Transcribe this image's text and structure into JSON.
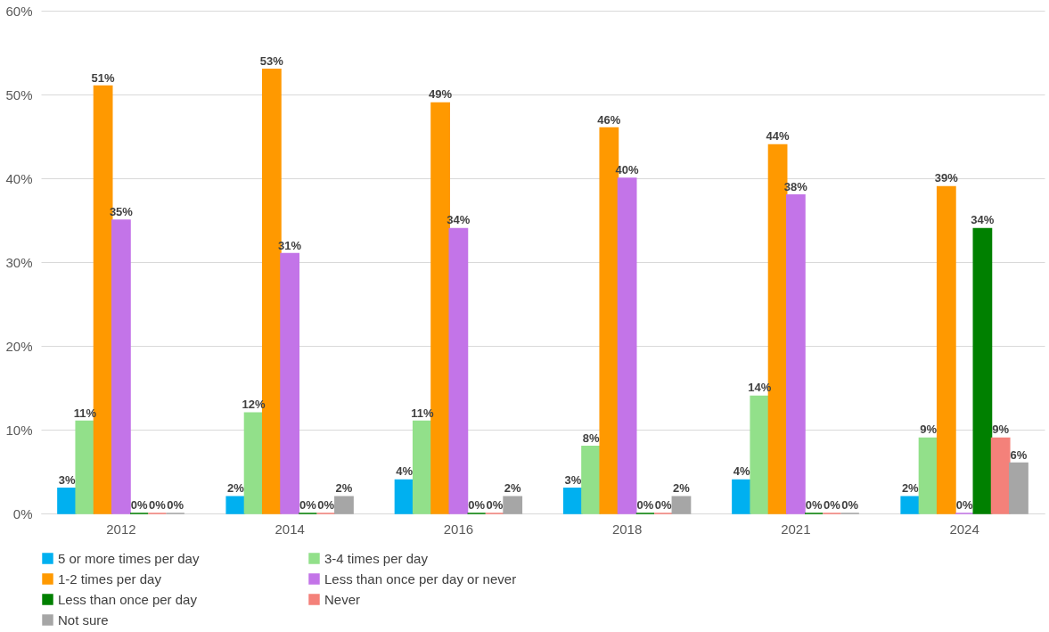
{
  "chart_data": {
    "type": "bar",
    "categories": [
      "2012",
      "2014",
      "2016",
      "2018",
      "2021",
      "2024"
    ],
    "series": [
      {
        "name": "5 or more times per day",
        "color": "#00b0f0",
        "values": [
          3,
          2,
          4,
          3,
          4,
          2
        ],
        "value_labels": [
          "3%",
          "2%",
          "4%",
          "3%",
          "4%",
          "2%"
        ]
      },
      {
        "name": "3-4 times per day",
        "color": "#92e08a",
        "values": [
          11,
          12,
          11,
          8,
          14,
          9
        ],
        "value_labels": [
          "11%",
          "12%",
          "11%",
          "8%",
          "14%",
          "9%"
        ]
      },
      {
        "name": "1-2 times per day",
        "color": "#ff9900",
        "values": [
          51,
          53,
          49,
          46,
          44,
          39
        ],
        "value_labels": [
          "51%",
          "53%",
          "49%",
          "46%",
          "44%",
          "39%"
        ]
      },
      {
        "name": "Less than once per day or never",
        "color": "#c374e8",
        "values": [
          35,
          31,
          34,
          40,
          38,
          0
        ],
        "value_labels": [
          "35%",
          "31%",
          "34%",
          "40%",
          "38%",
          "0%"
        ]
      },
      {
        "name": "Less than once per day",
        "color": "#008000",
        "values": [
          0,
          0,
          0,
          0,
          0,
          34
        ],
        "value_labels": [
          "0%",
          "0%",
          "0%",
          "0%",
          "0%",
          "34%"
        ]
      },
      {
        "name": "Never",
        "color": "#f4817a",
        "values": [
          0,
          0,
          0,
          0,
          0,
          9
        ],
        "value_labels": [
          "0%",
          "0%",
          "0%",
          "0%",
          "0%",
          "9%"
        ]
      },
      {
        "name": "Not sure",
        "color": "#a6a6a6",
        "values": [
          0,
          2,
          2,
          2,
          0,
          6
        ],
        "value_labels": [
          "0%",
          "2%",
          "2%",
          "2%",
          "0%",
          "6%"
        ]
      }
    ],
    "ylim": [
      0,
      60
    ],
    "yticks": [
      {
        "value": 0,
        "label": "0%"
      },
      {
        "value": 10,
        "label": "10%"
      },
      {
        "value": 20,
        "label": "20%"
      },
      {
        "value": 30,
        "label": "30%"
      },
      {
        "value": 40,
        "label": "40%"
      },
      {
        "value": 50,
        "label": "50%"
      },
      {
        "value": 60,
        "label": "60%"
      }
    ],
    "grid": "y",
    "legend": "bottom"
  }
}
